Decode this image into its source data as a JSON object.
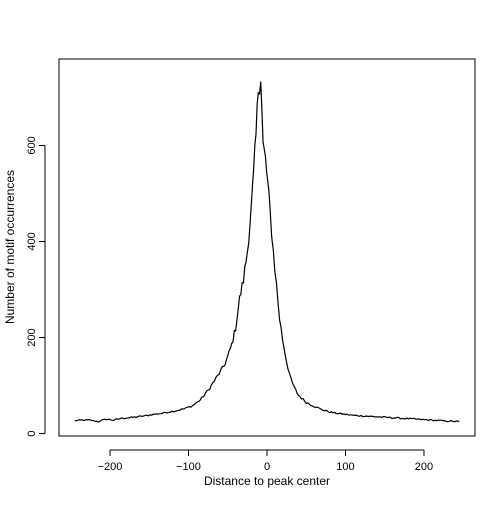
{
  "chart_data": {
    "type": "line",
    "title": "",
    "xlabel": "Distance to peak center",
    "ylabel": "Number of motif occurrences",
    "xlim": [
      -265,
      265
    ],
    "ylim": [
      -5,
      780
    ],
    "x_ticks": [
      -200,
      -100,
      0,
      100,
      200
    ],
    "x_tick_labels": [
      "−200",
      "−100",
      "0",
      "100",
      "200"
    ],
    "y_ticks": [
      0,
      200,
      400,
      600
    ],
    "y_tick_labels": [
      "0",
      "200",
      "400",
      "600"
    ],
    "grid": false,
    "legend": "none",
    "line_color": "#000000",
    "series": [
      {
        "x": [
          -245,
          -235,
          -225,
          -215,
          -205,
          -195,
          -185,
          -175,
          -165,
          -155,
          -145,
          -135,
          -125,
          -115,
          -105,
          -95,
          -85,
          -75,
          -65,
          -55,
          -50,
          -45,
          -40,
          -35,
          -30,
          -25,
          -20,
          -17,
          -14,
          -11,
          -8,
          -5,
          -2,
          1,
          4,
          8,
          12,
          16,
          20,
          25,
          30,
          35,
          40,
          50,
          60,
          70,
          80,
          90,
          100,
          110,
          120,
          130,
          140,
          150,
          160,
          170,
          180,
          190,
          200,
          210,
          220,
          230,
          245
        ],
        "y": [
          27,
          28,
          28,
          25,
          30,
          28,
          32,
          33,
          35,
          37,
          40,
          42,
          45,
          48,
          52,
          58,
          70,
          90,
          115,
          140,
          160,
          185,
          220,
          280,
          320,
          380,
          470,
          540,
          620,
          720,
          745,
          600,
          570,
          520,
          460,
          380,
          310,
          240,
          195,
          150,
          115,
          95,
          80,
          65,
          57,
          50,
          45,
          42,
          40,
          38,
          37,
          36,
          35,
          34,
          33,
          32,
          31,
          30,
          29,
          28,
          27,
          26,
          25
        ]
      }
    ]
  }
}
